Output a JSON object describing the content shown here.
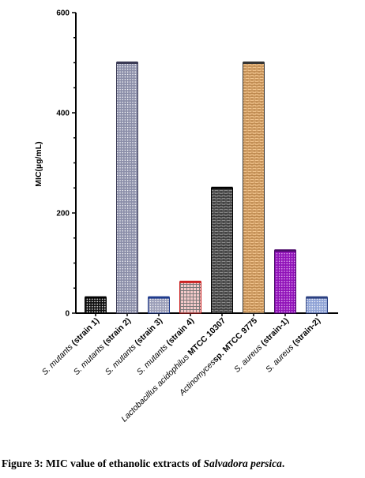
{
  "chart_data": {
    "type": "bar",
    "ylabel": "MIC(µg/mL)",
    "ylim": [
      0,
      600
    ],
    "yticks": [
      0,
      200,
      400,
      600
    ],
    "grid": false,
    "legend": "none",
    "categories": [
      {
        "species": "S. mutants",
        "rest": " (strain 1)",
        "rest_bold": true
      },
      {
        "species": "S. mutants",
        "rest": " (strain 2)",
        "rest_bold": true
      },
      {
        "species": "S. mutants",
        "rest": " (strain 3)",
        "rest_bold": true
      },
      {
        "species": "S. mutants",
        "rest": " (strain 4)",
        "rest_bold": true
      },
      {
        "species": "Lactobacillus acidophilus",
        "rest": " MTCC 10307",
        "rest_bold": true
      },
      {
        "species": "Actinomyces",
        "rest": "sp. MTCC 9775",
        "rest_bold": true
      },
      {
        "species": "S. aureus",
        "rest": " (strain-1)",
        "rest_bold": true
      },
      {
        "species": "S. aureus",
        "rest": " (strain-2)",
        "rest_bold": true
      }
    ],
    "values": [
      31.25,
      500,
      31.25,
      62.5,
      250,
      500,
      125,
      31.25
    ],
    "bar_styles": [
      {
        "pattern": "dots",
        "fill": "#111111",
        "dot": "#ffffff",
        "stroke": "#000000"
      },
      {
        "pattern": "dots",
        "fill": "#8a8da8",
        "dot": "#ffffff",
        "stroke": "#3a3a55"
      },
      {
        "pattern": "dots",
        "fill": "#9b9eb8",
        "dot": "#ffffff",
        "stroke": "#1e3a8c"
      },
      {
        "pattern": "grid",
        "fill": "#f4c9c9",
        "dot": "#777777",
        "stroke": "#cc2222"
      },
      {
        "pattern": "brick",
        "fill": "#8a8a8a",
        "dot": "#222222",
        "stroke": "#000000"
      },
      {
        "pattern": "brick",
        "fill": "#f1c48e",
        "dot": "#b07a3e",
        "stroke": "#333333"
      },
      {
        "pattern": "dots",
        "fill": "#9012b8",
        "dot": "#e9b8f5",
        "stroke": "#4b0a6a"
      },
      {
        "pattern": "dots",
        "fill": "#8fa3d6",
        "dot": "#ffffff",
        "stroke": "#2a3f80"
      }
    ]
  },
  "caption": {
    "prefix": "Figure 3: MIC value of ethanolic extracts of ",
    "species": "Salvadora persica",
    "suffix": "."
  }
}
